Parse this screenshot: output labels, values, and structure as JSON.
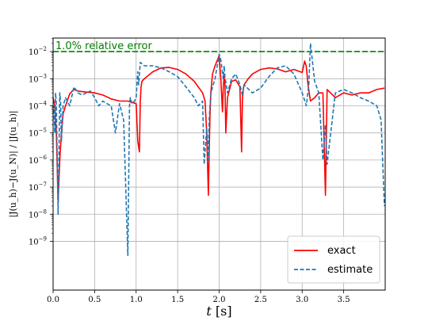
{
  "chart_data": {
    "type": "line",
    "xlabel": "t [s]",
    "ylabel": "|J(u_h)−J(u_N)| / |J(u_h)|",
    "xlim": [
      0,
      4
    ],
    "ylim_log10": [
      -10.8,
      -1.5
    ],
    "log_y": true,
    "grid": true,
    "legend_position": "lower-right",
    "x_ticks": [
      {
        "value": 0.0,
        "label": "0.0"
      },
      {
        "value": 0.5,
        "label": "0.5"
      },
      {
        "value": 1.0,
        "label": "1.0"
      },
      {
        "value": 1.5,
        "label": "1.5"
      },
      {
        "value": 2.0,
        "label": "2.0"
      },
      {
        "value": 2.5,
        "label": "2.5"
      },
      {
        "value": 3.0,
        "label": "3.0"
      },
      {
        "value": 3.5,
        "label": "3.5"
      }
    ],
    "y_ticks": [
      {
        "exp": -9,
        "label": "10"
      },
      {
        "exp": -8,
        "label": "10"
      },
      {
        "exp": -7,
        "label": "10"
      },
      {
        "exp": -6,
        "label": "10"
      },
      {
        "exp": -5,
        "label": "10"
      },
      {
        "exp": -4,
        "label": "10"
      },
      {
        "exp": -3,
        "label": "10"
      },
      {
        "exp": -2,
        "label": "10"
      }
    ],
    "y_tick_exponents": [
      "−9",
      "−8",
      "−7",
      "−6",
      "−5",
      "−4",
      "−3",
      "−2"
    ],
    "reference_line": {
      "value": 0.01,
      "label": "1.0% relative error",
      "color": "#008000"
    },
    "series": [
      {
        "name": "exact",
        "style": "solid",
        "color": "#ff0000",
        "x": [
          0.0,
          0.02,
          0.04,
          0.06,
          0.08,
          0.1,
          0.12,
          0.15,
          0.2,
          0.25,
          0.3,
          0.4,
          0.5,
          0.6,
          0.7,
          0.8,
          0.9,
          1.0,
          1.02,
          1.04,
          1.05,
          1.06,
          1.07,
          1.1,
          1.2,
          1.3,
          1.4,
          1.5,
          1.6,
          1.7,
          1.8,
          1.83,
          1.85,
          1.87,
          1.88,
          1.89,
          1.9,
          1.92,
          1.95,
          2.0,
          2.02,
          2.04,
          2.05,
          2.06,
          2.07,
          2.08,
          2.1,
          2.15,
          2.2,
          2.25,
          2.27,
          2.28,
          2.29,
          2.3,
          2.35,
          2.4,
          2.5,
          2.6,
          2.7,
          2.8,
          2.9,
          3.0,
          3.03,
          3.05,
          3.07,
          3.1,
          3.15,
          3.2,
          3.25,
          3.28,
          3.3,
          3.4,
          3.5,
          3.6,
          3.7,
          3.8,
          3.9,
          3.99
        ],
        "values": [
          0.0002,
          0.0001,
          8e-06,
          3e-08,
          1e-06,
          1e-05,
          5e-05,
          0.0001,
          0.00028,
          0.0004,
          0.00035,
          0.00032,
          0.0003,
          0.00025,
          0.00018,
          0.00015,
          0.00015,
          0.00012,
          5e-06,
          2e-06,
          0.00015,
          0.0005,
          0.0008,
          0.001,
          0.0018,
          0.0025,
          0.0026,
          0.0022,
          0.0015,
          0.0008,
          0.0003,
          0.00015,
          1e-05,
          5e-08,
          2e-06,
          5e-05,
          0.0003,
          0.0015,
          0.003,
          0.007,
          0.001,
          6e-05,
          0.0005,
          0.0012,
          0.0006,
          1e-05,
          0.0002,
          0.0008,
          0.0009,
          0.0005,
          2e-06,
          0.00015,
          0.0004,
          0.0006,
          0.001,
          0.0015,
          0.0022,
          0.0025,
          0.0023,
          0.0018,
          0.0022,
          0.0017,
          0.0045,
          0.0028,
          0.0006,
          0.00015,
          0.0002,
          0.0003,
          0.0003,
          5e-08,
          0.0004,
          0.0002,
          0.0003,
          0.00025,
          0.0003,
          0.0003,
          0.0004,
          0.00045
        ]
      },
      {
        "name": "estimate",
        "style": "dashed",
        "color": "#1f77b4",
        "x": [
          0.0,
          0.01,
          0.02,
          0.03,
          0.04,
          0.05,
          0.06,
          0.07,
          0.08,
          0.09,
          0.1,
          0.12,
          0.15,
          0.2,
          0.25,
          0.3,
          0.35,
          0.4,
          0.45,
          0.5,
          0.55,
          0.6,
          0.65,
          0.7,
          0.75,
          0.8,
          0.85,
          0.9,
          0.92,
          0.93,
          0.95,
          0.98,
          1.0,
          1.02,
          1.03,
          1.05,
          1.1,
          1.2,
          1.3,
          1.4,
          1.5,
          1.6,
          1.7,
          1.75,
          1.8,
          1.82,
          1.85,
          1.87,
          1.88,
          1.9,
          1.95,
          2.0,
          2.02,
          2.05,
          2.06,
          2.07,
          2.1,
          2.15,
          2.2,
          2.25,
          2.28,
          2.3,
          2.4,
          2.5,
          2.6,
          2.7,
          2.8,
          2.9,
          3.0,
          3.05,
          3.08,
          3.1,
          3.15,
          3.2,
          3.25,
          3.28,
          3.3,
          3.4,
          3.5,
          3.6,
          3.7,
          3.8,
          3.9,
          3.95,
          3.99
        ],
        "values": [
          5e-05,
          0.0001,
          1e-05,
          0.0003,
          0.0001,
          1e-06,
          1e-08,
          1e-06,
          0.0003,
          0.00015,
          5e-06,
          0.0001,
          0.0002,
          0.0001,
          0.0005,
          0.0003,
          0.00025,
          0.0003,
          0.00035,
          0.0002,
          0.0001,
          0.00015,
          0.00012,
          0.0001,
          1e-05,
          0.00012,
          3e-05,
          3e-10,
          0.0001,
          0.0002,
          0.00012,
          0.00015,
          0.0002,
          0.0018,
          0.0006,
          0.004,
          0.003,
          0.003,
          0.0025,
          0.0018,
          0.0012,
          0.0005,
          0.0002,
          0.0001,
          0.00015,
          7e-07,
          1.5e-05,
          1e-06,
          3e-05,
          0.0003,
          0.001,
          0.008,
          0.005,
          0.001,
          0.003,
          0.0012,
          0.0003,
          0.001,
          0.0015,
          0.0006,
          0.00025,
          0.0006,
          0.0003,
          0.00045,
          0.0012,
          0.0025,
          0.003,
          0.0015,
          0.0003,
          0.0001,
          0.0006,
          0.02,
          0.0008,
          0.0003,
          1e-06,
          2e-05,
          7e-07,
          0.0003,
          0.0004,
          0.0003,
          0.0002,
          0.00015,
          0.0001,
          3e-05,
          2e-08
        ]
      }
    ]
  }
}
